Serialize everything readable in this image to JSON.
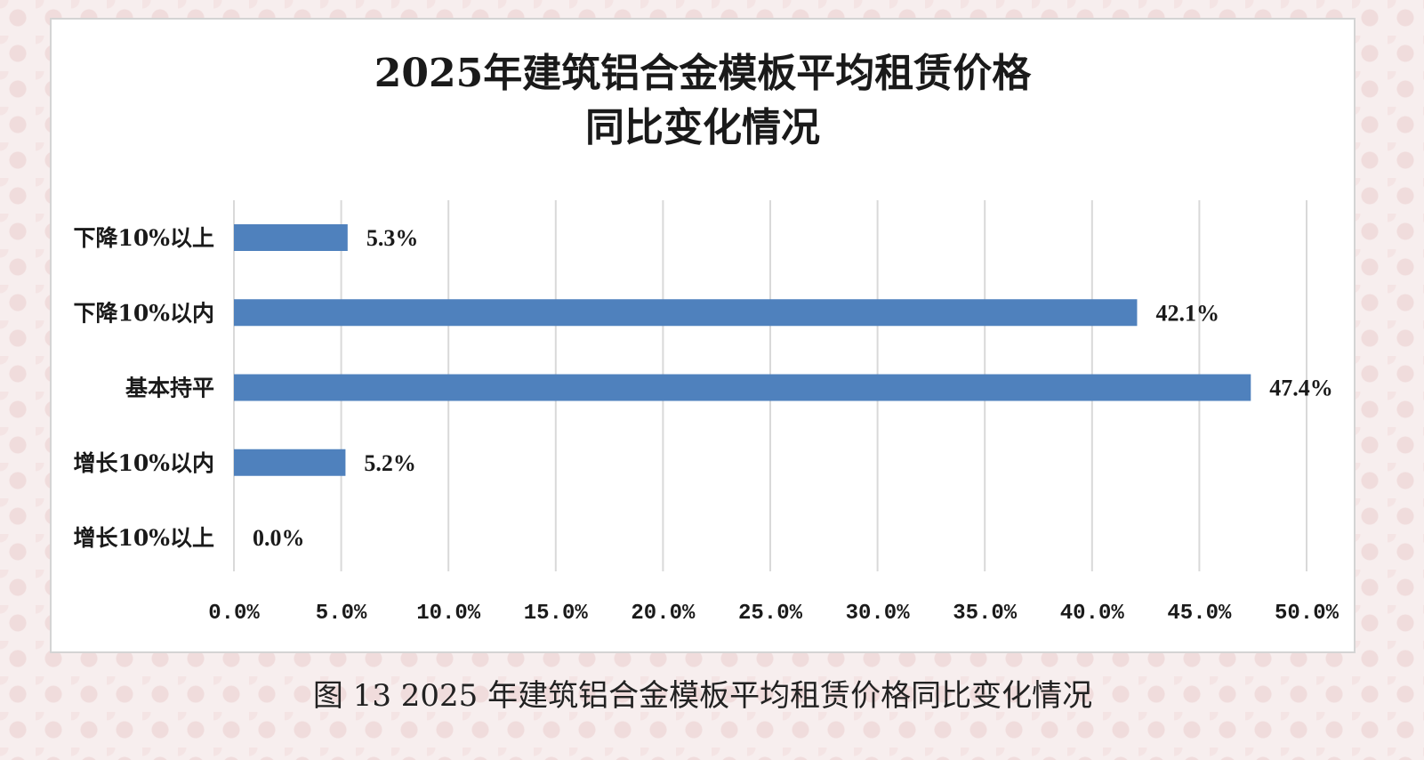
{
  "chart_data": {
    "type": "bar",
    "orientation": "horizontal",
    "title_lines": [
      "2025年建筑铝合金模板平均租赁价格",
      "同比变化情况"
    ],
    "xlabel": "",
    "ylabel": "",
    "categories": [
      "下降10%以上",
      "下降10%以内",
      "基本持平",
      "增长10%以内",
      "增长10%以上"
    ],
    "values": [
      5.3,
      42.1,
      47.4,
      5.2,
      0.0
    ],
    "data_labels": [
      "5.3%",
      "42.1%",
      "47.4%",
      "5.2%",
      "0.0%"
    ],
    "xlim": [
      0,
      50
    ],
    "x_ticks": [
      0,
      5,
      10,
      15,
      20,
      25,
      30,
      35,
      40,
      45,
      50
    ],
    "x_tick_labels": [
      "0.0%",
      "5.0%",
      "10.0%",
      "15.0%",
      "20.0%",
      "25.0%",
      "30.0%",
      "35.0%",
      "40.0%",
      "45.0%",
      "50.0%"
    ],
    "grid": "vertical",
    "legend": "none",
    "bar_color": "#4f81bd",
    "grid_color": "#d9d9d9"
  },
  "caption": "图 13 2025 年建筑铝合金模板平均租赁价格同比变化情况"
}
